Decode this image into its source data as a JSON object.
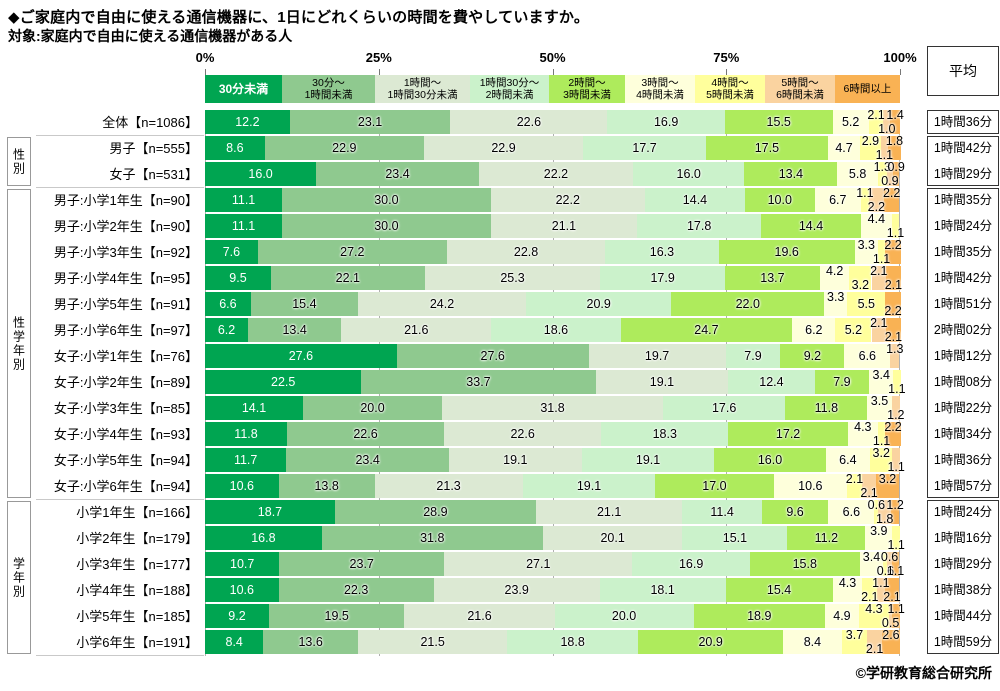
{
  "chart_data": {
    "type": "bar",
    "stacked": true,
    "orientation": "horizontal",
    "unit": "%",
    "title": "◆ご家庭内で自由に使える通信機器に、1日にどれくらいの時間を費やしていますか。",
    "subtitle": "対象:家庭内で自由に使える通信機器がある人",
    "average_header": "平均",
    "credit": "©学研教育総合研究所",
    "x_range": [
      0,
      100
    ],
    "x_ticks": [
      "0%",
      "25%",
      "50%",
      "75%",
      "100%"
    ],
    "legend_widths_pct": [
      11.08,
      13.38,
      13.67,
      11.37,
      10.94,
      10.07,
      10.07,
      10.07,
      9.35
    ],
    "series": [
      {
        "name": "30分未満",
        "lines": [
          "30分未満"
        ],
        "color": "#00A551",
        "text_color": "#FFFFFF"
      },
      {
        "name": "30分〜1時間未満",
        "lines": [
          "30分〜",
          "1時間未満"
        ],
        "color": "#8FC98F",
        "text_color": "#000000"
      },
      {
        "name": "1時間〜1時間30分未満",
        "lines": [
          "1時間〜",
          "1時間30分未満"
        ],
        "color": "#DCE9D3",
        "text_color": "#000000"
      },
      {
        "name": "1時間30分〜2時間未満",
        "lines": [
          "1時間30分〜",
          "2時間未満"
        ],
        "color": "#CBF2CB",
        "text_color": "#000000"
      },
      {
        "name": "2時間〜3時間未満",
        "lines": [
          "2時間〜",
          "3時間未満"
        ],
        "color": "#AEEB5C",
        "text_color": "#000000"
      },
      {
        "name": "3時間〜4時間未満",
        "lines": [
          "3時間〜",
          "4時間未満"
        ],
        "color": "#FEFFDB",
        "text_color": "#000000"
      },
      {
        "name": "4時間〜5時間未満",
        "lines": [
          "4時間〜",
          "5時間未満"
        ],
        "color": "#FFFF9C",
        "text_color": "#000000"
      },
      {
        "name": "5時間〜6時間未満",
        "lines": [
          "5時間〜",
          "6時間未満"
        ],
        "color": "#FAD3A0",
        "text_color": "#000000"
      },
      {
        "name": "6時間以上",
        "lines": [
          "6時間以上"
        ],
        "color": "#F9B254",
        "text_color": "#000000"
      }
    ],
    "rows": [
      {
        "label": "全体【n=1086】",
        "values": [
          12.2,
          23.1,
          22.6,
          16.9,
          15.5,
          5.2,
          2.1,
          1.0,
          1.4
        ],
        "average": "1時間36分"
      },
      {
        "label": "男子【n=555】",
        "values": [
          8.6,
          22.9,
          22.9,
          17.7,
          17.5,
          4.7,
          2.9,
          1.1,
          1.8
        ],
        "average": "1時間42分"
      },
      {
        "label": "女子【n=531】",
        "values": [
          16.0,
          23.4,
          22.2,
          16.0,
          13.4,
          5.8,
          1.3,
          0.9,
          0.9
        ],
        "average": "1時間29分"
      },
      {
        "label": "男子:小学1年生【n=90】",
        "values": [
          11.1,
          30.0,
          22.2,
          14.4,
          10.0,
          6.7,
          1.1,
          2.2,
          2.2
        ],
        "average": "1時間35分"
      },
      {
        "label": "男子:小学2年生【n=90】",
        "values": [
          11.1,
          30.0,
          21.1,
          17.8,
          14.4,
          4.4,
          1.1,
          0,
          0
        ],
        "average": "1時間24分"
      },
      {
        "label": "男子:小学3年生【n=92】",
        "values": [
          7.6,
          27.2,
          22.8,
          16.3,
          19.6,
          3.3,
          1.1,
          0,
          2.2
        ],
        "average": "1時間35分"
      },
      {
        "label": "男子:小学4年生【n=95】",
        "values": [
          9.5,
          22.1,
          25.3,
          17.9,
          13.7,
          4.2,
          3.2,
          2.1,
          2.1
        ],
        "average": "1時間42分"
      },
      {
        "label": "男子:小学5年生【n=91】",
        "values": [
          6.6,
          15.4,
          24.2,
          20.9,
          22.0,
          3.3,
          5.5,
          0,
          2.2
        ],
        "average": "1時間51分"
      },
      {
        "label": "男子:小学6年生【n=97】",
        "values": [
          6.2,
          13.4,
          21.6,
          18.6,
          24.7,
          6.2,
          5.2,
          2.1,
          2.1
        ],
        "average": "2時間02分"
      },
      {
        "label": "女子:小学1年生【n=76】",
        "values": [
          27.6,
          27.6,
          19.7,
          7.9,
          9.2,
          6.6,
          0,
          1.3,
          0
        ],
        "average": "1時間12分"
      },
      {
        "label": "女子:小学2年生【n=89】",
        "values": [
          22.5,
          33.7,
          19.1,
          12.4,
          7.9,
          3.4,
          1.1,
          0,
          0
        ],
        "average": "1時間08分"
      },
      {
        "label": "女子:小学3年生【n=85】",
        "values": [
          14.1,
          20.0,
          31.8,
          17.6,
          11.8,
          3.5,
          0,
          1.2,
          0
        ],
        "average": "1時間22分"
      },
      {
        "label": "女子:小学4年生【n=93】",
        "values": [
          11.8,
          22.6,
          22.6,
          18.3,
          17.2,
          4.3,
          1.1,
          0,
          2.2
        ],
        "average": "1時間34分"
      },
      {
        "label": "女子:小学5年生【n=94】",
        "values": [
          11.7,
          23.4,
          19.1,
          19.1,
          16.0,
          6.4,
          3.2,
          1.1,
          0
        ],
        "average": "1時間36分"
      },
      {
        "label": "女子:小学6年生【n=94】",
        "values": [
          10.6,
          13.8,
          21.3,
          19.1,
          17.0,
          10.6,
          2.1,
          2.1,
          3.2
        ],
        "average": "1時間57分"
      },
      {
        "label": "小学1年生【n=166】",
        "values": [
          18.7,
          28.9,
          21.1,
          11.4,
          9.6,
          6.6,
          0.6,
          1.8,
          1.2
        ],
        "average": "1時間24分"
      },
      {
        "label": "小学2年生【n=179】",
        "values": [
          16.8,
          31.8,
          20.1,
          15.1,
          11.2,
          3.9,
          1.1,
          0,
          0
        ],
        "average": "1時間16分"
      },
      {
        "label": "小学3年生【n=177】",
        "values": [
          10.7,
          23.7,
          27.1,
          16.9,
          15.8,
          3.4,
          0.6,
          0.6,
          1.1
        ],
        "average": "1時間29分"
      },
      {
        "label": "小学4年生【n=188】",
        "values": [
          10.6,
          22.3,
          23.9,
          18.1,
          15.4,
          4.3,
          2.1,
          1.1,
          2.1
        ],
        "average": "1時間38分"
      },
      {
        "label": "小学5年生【n=185】",
        "values": [
          9.2,
          19.5,
          21.6,
          20.0,
          18.9,
          4.9,
          4.3,
          0.5,
          1.1
        ],
        "average": "1時間44分"
      },
      {
        "label": "小学6年生【n=191】",
        "values": [
          8.4,
          13.6,
          21.5,
          18.8,
          20.9,
          8.4,
          3.7,
          2.1,
          2.6
        ],
        "average": "1時間59分"
      }
    ],
    "groups": [
      {
        "label": "",
        "start": 0,
        "count": 1
      },
      {
        "label": "性別",
        "start": 1,
        "count": 2
      },
      {
        "label": "性学年別",
        "start": 3,
        "count": 12
      },
      {
        "label": "学年別",
        "start": 15,
        "count": 6
      }
    ]
  }
}
